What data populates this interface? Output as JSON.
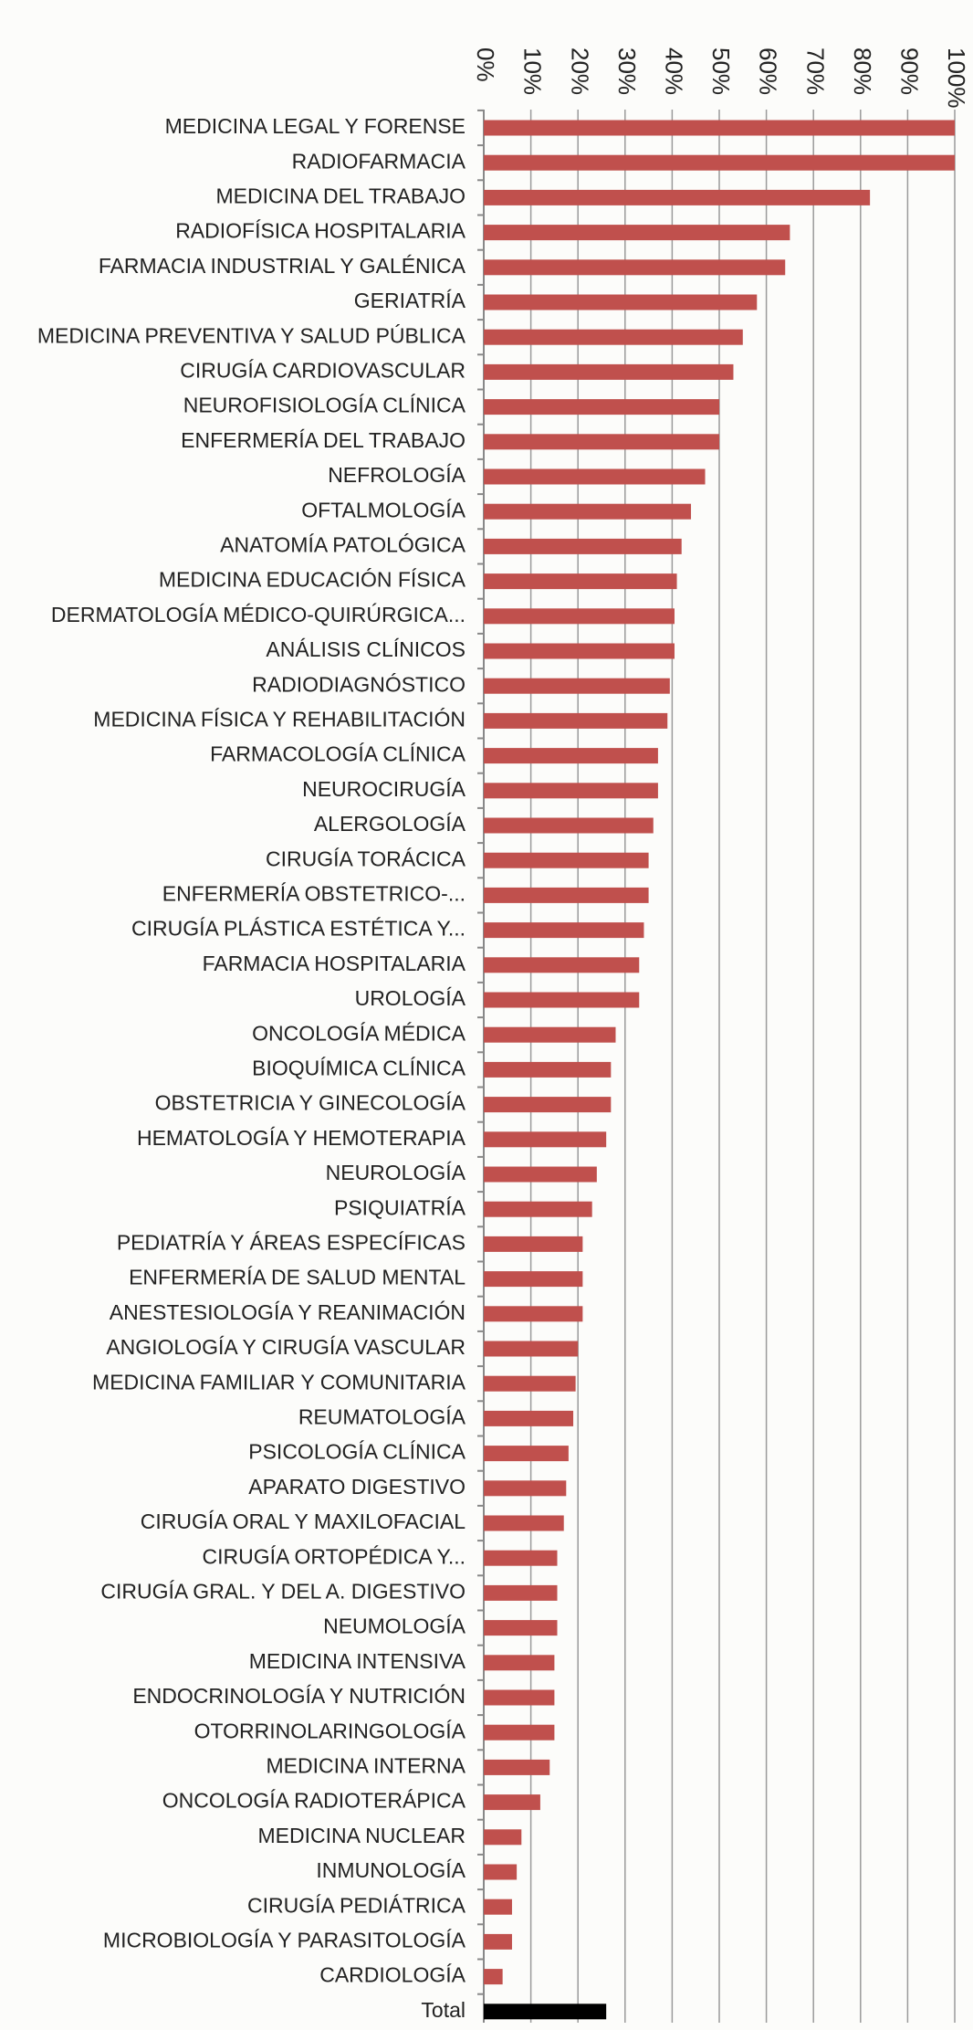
{
  "chart_data": {
    "type": "barh",
    "categories": [
      "MEDICINA LEGAL Y FORENSE",
      "RADIOFARMACIA",
      "MEDICINA DEL TRABAJO",
      "RADIOFÍSICA HOSPITALARIA",
      "FARMACIA INDUSTRIAL Y GALÉNICA",
      "GERIATRÍA",
      "MEDICINA PREVENTIVA Y SALUD PÚBLICA",
      "CIRUGÍA CARDIOVASCULAR",
      "NEUROFISIOLOGÍA CLÍNICA",
      "ENFERMERÍA DEL TRABAJO",
      "NEFROLOGÍA",
      "OFTALMOLOGÍA",
      "ANATOMÍA PATOLÓGICA",
      "MEDICINA EDUCACIÓN FÍSICA",
      "DERMATOLOGÍA MÉDICO-QUIRÚRGICA...",
      "ANÁLISIS CLÍNICOS",
      "RADIODIAGNÓSTICO",
      "MEDICINA FÍSICA Y REHABILITACIÓN",
      "FARMACOLOGÍA CLÍNICA",
      "NEUROCIRUGÍA",
      "ALERGOLOGÍA",
      "CIRUGÍA TORÁCICA",
      "ENFERMERÍA OBSTETRICO-...",
      "CIRUGÍA PLÁSTICA ESTÉTICA Y...",
      "FARMACIA HOSPITALARIA",
      "UROLOGÍA",
      "ONCOLOGÍA MÉDICA",
      "BIOQUÍMICA CLÍNICA",
      "OBSTETRICIA Y GINECOLOGÍA",
      "HEMATOLOGÍA Y HEMOTERAPIA",
      "NEUROLOGÍA",
      "PSIQUIATRÍA",
      "PEDIATRÍA Y ÁREAS ESPECÍFICAS",
      "ENFERMERÍA DE SALUD MENTAL",
      "ANESTESIOLOGÍA Y REANIMACIÓN",
      "ANGIOLOGÍA Y CIRUGÍA VASCULAR",
      "MEDICINA FAMILIAR Y COMUNITARIA",
      "REUMATOLOGÍA",
      "PSICOLOGÍA CLÍNICA",
      "APARATO DIGESTIVO",
      "CIRUGÍA ORAL Y MAXILOFACIAL",
      "CIRUGÍA ORTOPÉDICA Y...",
      "CIRUGÍA GRAL. Y DEL A. DIGESTIVO",
      "NEUMOLOGÍA",
      "MEDICINA INTENSIVA",
      "ENDOCRINOLOGÍA Y NUTRICIÓN",
      "OTORRINOLARINGOLOGÍA",
      "MEDICINA INTERNA",
      "ONCOLOGÍA RADIOTERÁPICA",
      "MEDICINA NUCLEAR",
      "INMUNOLOGÍA",
      "CIRUGÍA PEDIÁTRICA",
      "MICROBIOLOGÍA Y PARASITOLOGÍA",
      "CARDIOLOGÍA",
      "Total"
    ],
    "values": [
      100,
      100,
      82,
      65,
      64,
      58,
      55,
      53,
      50,
      50,
      47,
      44,
      42,
      41,
      40.5,
      40.5,
      39.5,
      39,
      37,
      37,
      36,
      35,
      35,
      34,
      33,
      33,
      28,
      27,
      27,
      26,
      24,
      23,
      21,
      21,
      21,
      20,
      19.5,
      19,
      18,
      17.5,
      17,
      15.6,
      15.6,
      15.6,
      15,
      15,
      15,
      14,
      12,
      8,
      7,
      6,
      6,
      4,
      26
    ],
    "colors": [
      "#c0504d",
      "#c0504d",
      "#c0504d",
      "#c0504d",
      "#c0504d",
      "#c0504d",
      "#c0504d",
      "#c0504d",
      "#c0504d",
      "#c0504d",
      "#c0504d",
      "#c0504d",
      "#c0504d",
      "#c0504d",
      "#c0504d",
      "#c0504d",
      "#c0504d",
      "#c0504d",
      "#c0504d",
      "#c0504d",
      "#c0504d",
      "#c0504d",
      "#c0504d",
      "#c0504d",
      "#c0504d",
      "#c0504d",
      "#c0504d",
      "#c0504d",
      "#c0504d",
      "#c0504d",
      "#c0504d",
      "#c0504d",
      "#c0504d",
      "#c0504d",
      "#c0504d",
      "#c0504d",
      "#c0504d",
      "#c0504d",
      "#c0504d",
      "#c0504d",
      "#c0504d",
      "#c0504d",
      "#c0504d",
      "#c0504d",
      "#c0504d",
      "#c0504d",
      "#c0504d",
      "#c0504d",
      "#c0504d",
      "#c0504d",
      "#c0504d",
      "#c0504d",
      "#c0504d",
      "#c0504d",
      "#000000"
    ],
    "xlim": [
      0,
      100
    ],
    "xticks": [
      {
        "value": 0,
        "label": "0%"
      },
      {
        "value": 10,
        "label": "10%"
      },
      {
        "value": 20,
        "label": "20%"
      },
      {
        "value": 30,
        "label": "30%"
      },
      {
        "value": 40,
        "label": "40%"
      },
      {
        "value": 50,
        "label": "50%"
      },
      {
        "value": 60,
        "label": "60%"
      },
      {
        "value": 70,
        "label": "70%"
      },
      {
        "value": 80,
        "label": "80%"
      },
      {
        "value": 90,
        "label": "90%"
      },
      {
        "value": 100,
        "label": "100%"
      }
    ],
    "grid": true
  }
}
